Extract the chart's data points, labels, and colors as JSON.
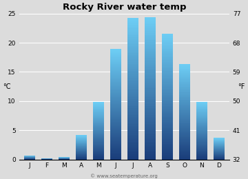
{
  "title": "Rocky River water temp",
  "months": [
    "J",
    "F",
    "M",
    "A",
    "M",
    "J",
    "J",
    "A",
    "S",
    "O",
    "N",
    "D"
  ],
  "values": [
    0.7,
    0.2,
    0.4,
    4.2,
    9.9,
    19.0,
    24.3,
    24.4,
    21.6,
    16.4,
    9.9,
    3.7
  ],
  "ylim_c": [
    0,
    25
  ],
  "yticks_c": [
    0,
    5,
    10,
    15,
    20,
    25
  ],
  "ylim_f": [
    32,
    77
  ],
  "yticks_f": [
    32,
    41,
    50,
    59,
    68,
    77
  ],
  "ylabel_left": "°C",
  "ylabel_right": "°F",
  "bg_color": "#dcdcdc",
  "plot_bg": "#dcdcdc",
  "bar_color_top": "#6ecff6",
  "bar_color_bottom": "#1a3d7a",
  "title_fontsize": 9.5,
  "tick_fontsize": 6.5,
  "label_fontsize": 7,
  "watermark": "© www.seatemperature.org"
}
